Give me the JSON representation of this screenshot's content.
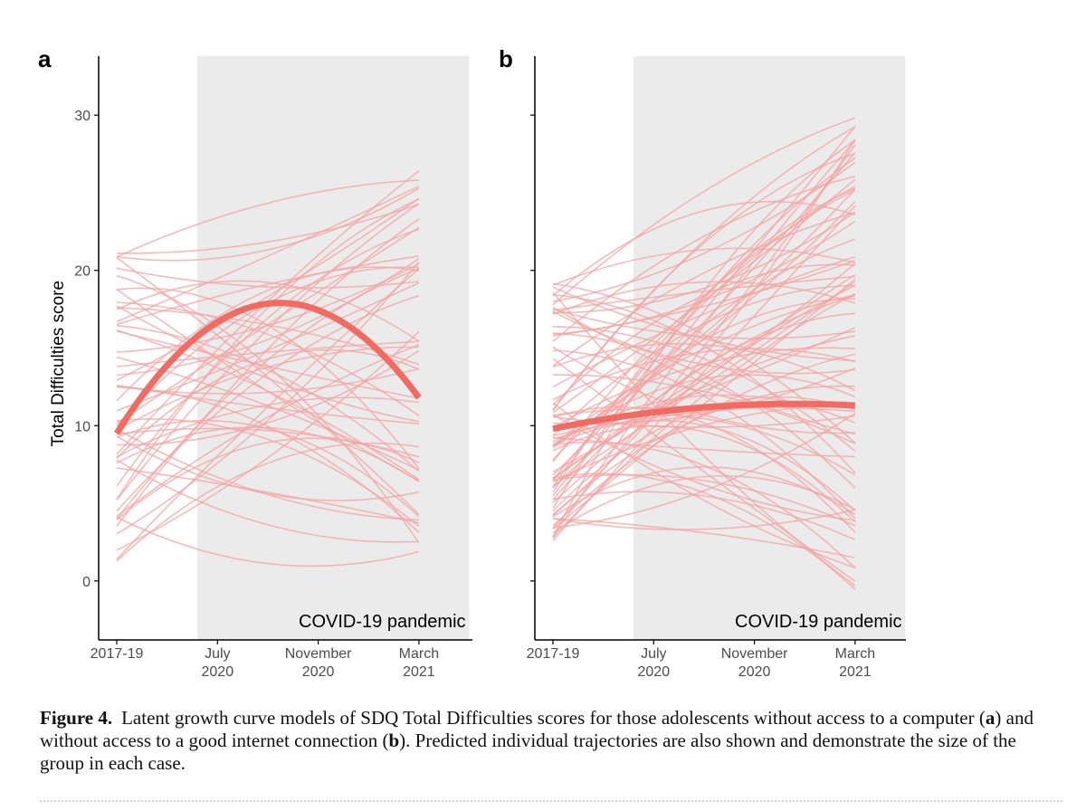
{
  "colors": {
    "trajectory": "#f4a3a3",
    "mean": "#f26b63",
    "pandemic_shade": "#ebebeb",
    "axis": "#000000"
  },
  "chart_data": [
    {
      "type": "line",
      "panel": "a",
      "ylabel": "Total Difficulties score",
      "xlabel": "",
      "ylim": [
        -3.8,
        33.8
      ],
      "yticks": [
        0,
        10,
        20,
        30
      ],
      "x_ticks": [
        {
          "pos": 0,
          "line1": "2017-19",
          "line2": ""
        },
        {
          "pos": 1,
          "line1": "July",
          "line2": "2020"
        },
        {
          "pos": 2,
          "line1": "November",
          "line2": "2020"
        },
        {
          "pos": 3,
          "line1": "March",
          "line2": "2021"
        }
      ],
      "shade": {
        "from": 0.8,
        "to": 3.5,
        "label": "COVID-19 pandemic"
      },
      "mean_trajectory": {
        "name": "mean",
        "start": 9.5,
        "peak_x": 1.65,
        "peak": 17.9,
        "end": 11.8
      },
      "trajectory_count": 55,
      "trajectory_ranges": {
        "start": [
          0.2,
          21.2
        ],
        "end": [
          1.2,
          26.5
        ]
      },
      "trajectory_seed": 7
    },
    {
      "type": "line",
      "panel": "b",
      "ylabel": "",
      "xlabel": "",
      "ylim": [
        -3.8,
        33.8
      ],
      "yticks": [
        0,
        10,
        20,
        30
      ],
      "x_ticks": [
        {
          "pos": 0,
          "line1": "2017-19",
          "line2": ""
        },
        {
          "pos": 1,
          "line1": "July",
          "line2": "2020"
        },
        {
          "pos": 2,
          "line1": "November",
          "line2": "2020"
        },
        {
          "pos": 3,
          "line1": "March",
          "line2": "2021"
        }
      ],
      "shade": {
        "from": 0.8,
        "to": 3.5,
        "label": "COVID-19 pandemic"
      },
      "mean_trajectory": {
        "name": "mean",
        "start": 9.8,
        "peak_x": 2.3,
        "peak": 11.4,
        "end": 11.3
      },
      "trajectory_count": 85,
      "trajectory_ranges": {
        "start": [
          2.6,
          19.2
        ],
        "end": [
          -0.6,
          30.2
        ]
      },
      "trajectory_seed": 19
    }
  ],
  "caption": {
    "label": "Figure 4.",
    "text_1": "Latent growth curve models of SDQ Total Difficulties scores for those adolescents without access to a computer (",
    "bold_a": "a",
    "text_2": ") and without access to a good internet connection (",
    "bold_b": "b",
    "text_3": "). Predicted individual trajectories are also shown and demonstrate the size of the group in each case."
  }
}
